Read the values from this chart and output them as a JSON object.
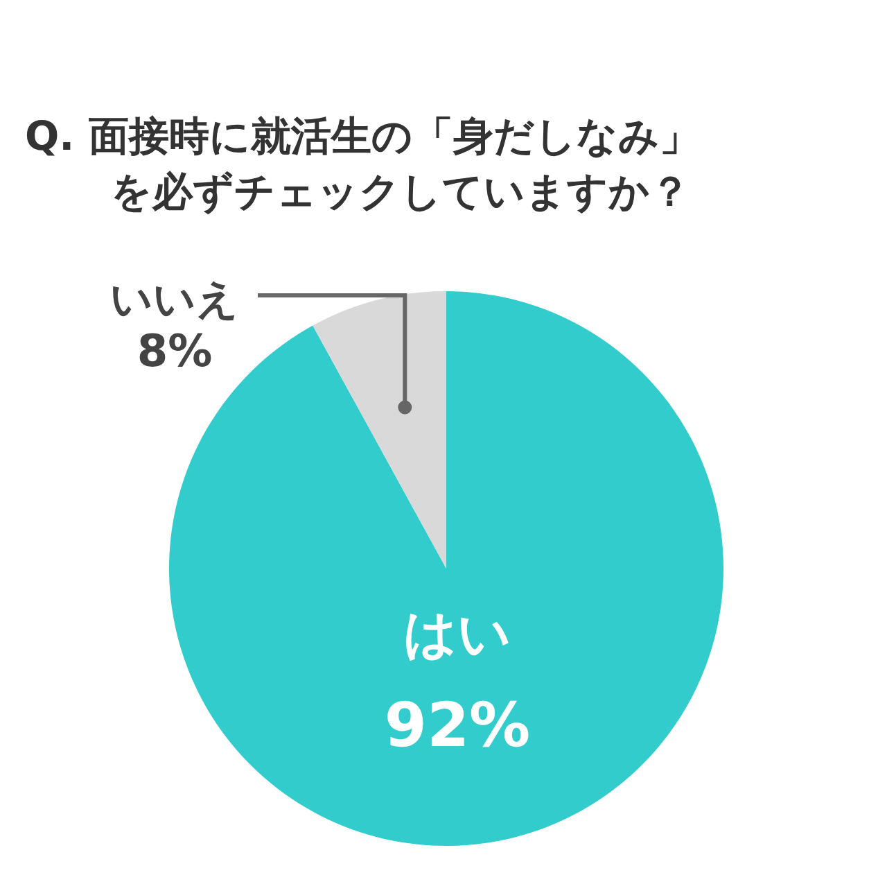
{
  "chart_data": {
    "type": "pie",
    "title": "Q.  面接時に就活生の「身だしなみ」を必ずチェックしていますか？",
    "categories": [
      "はい",
      "いいえ"
    ],
    "values": [
      92,
      8
    ],
    "value_labels": [
      "92%",
      "8%"
    ],
    "colors": [
      "#33cccc",
      "#d9d9d9"
    ]
  }
}
